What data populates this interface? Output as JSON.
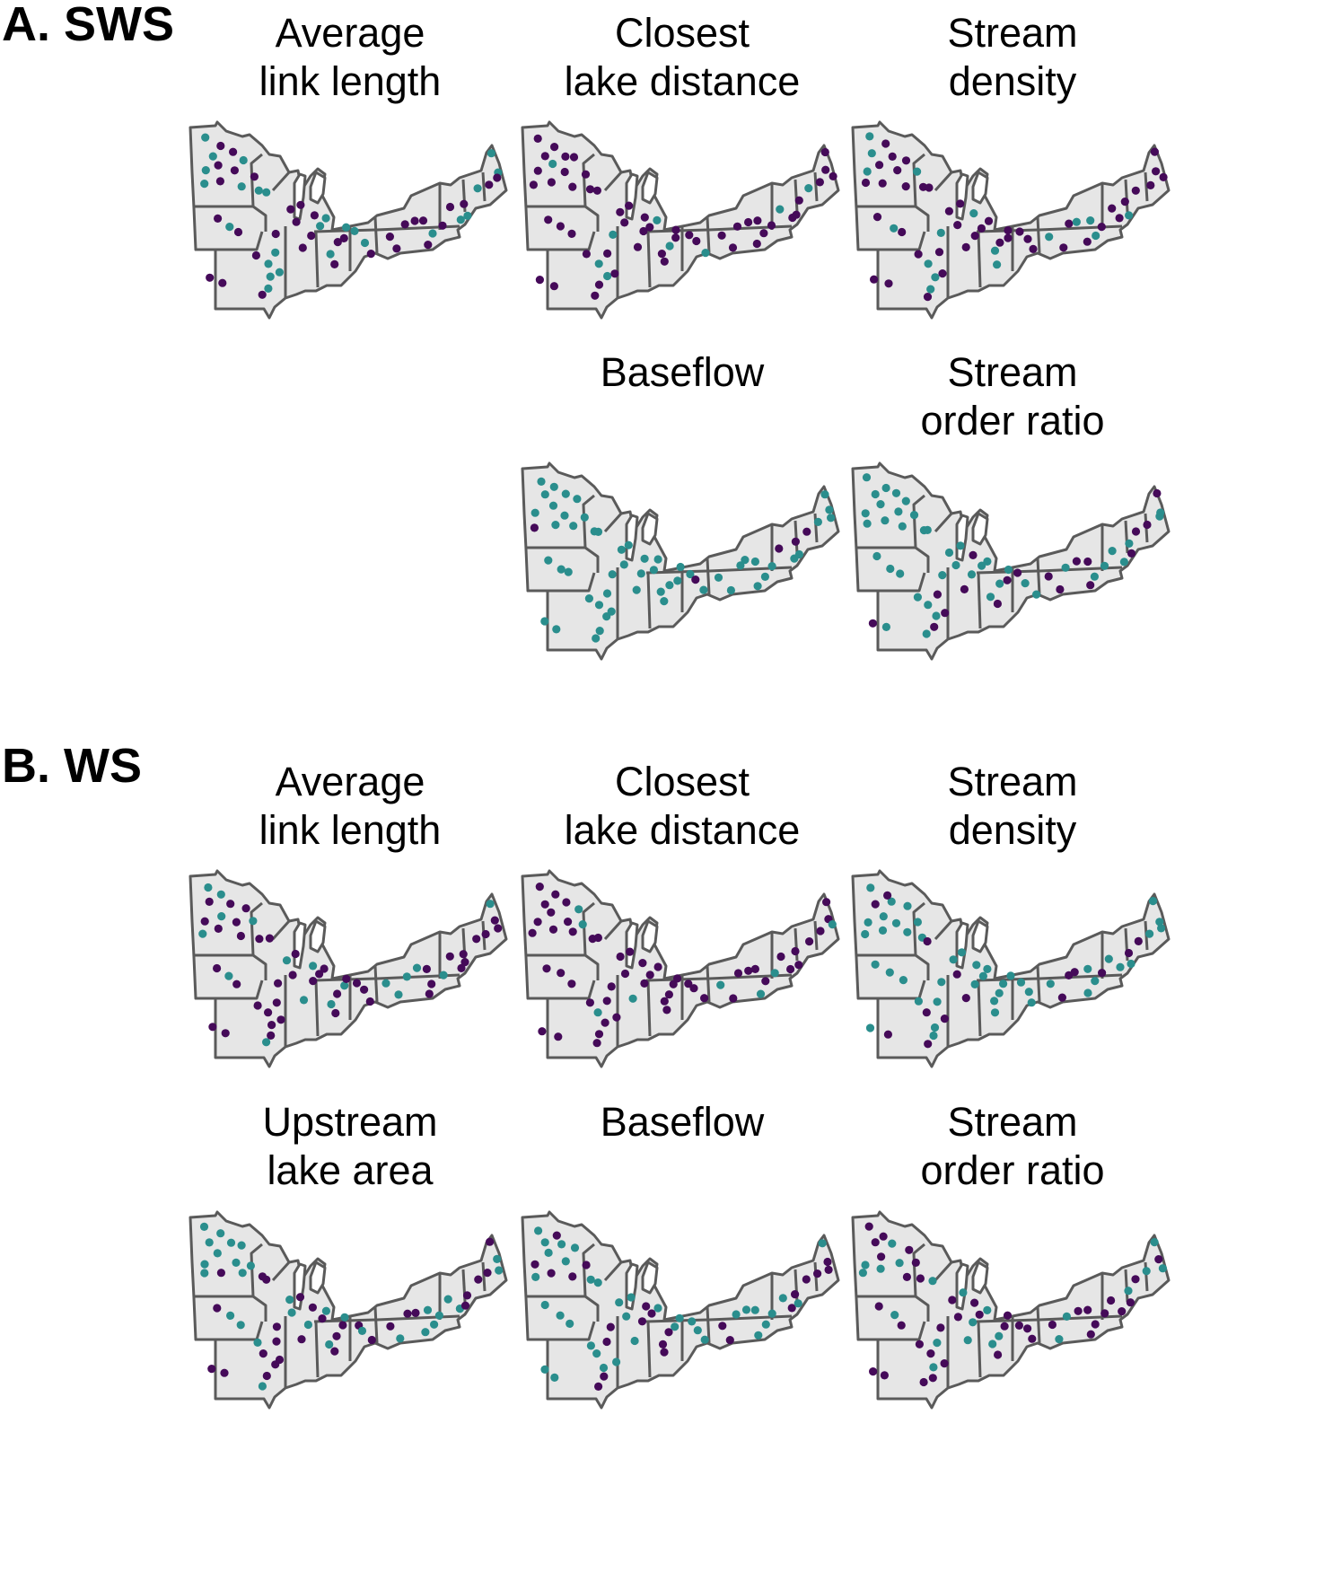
{
  "sections": [
    {
      "label": "A. SWS",
      "panels": [
        {
          "title": [
            "Average",
            "link length"
          ],
          "seed": 11,
          "teal_share": 0.3
        },
        {
          "title": [
            "Closest",
            "lake distance"
          ],
          "seed": 23,
          "teal_share": 0.12
        },
        {
          "title": [
            "Stream",
            "density"
          ],
          "seed": 37,
          "teal_share": 0.3
        },
        {
          "title": [
            "Baseflow",
            ""
          ],
          "seed": 41,
          "teal_share": 0.88
        },
        {
          "title": [
            "Stream",
            "order ratio"
          ],
          "seed": 53,
          "teal_share": 0.72
        }
      ]
    },
    {
      "label": "B. WS",
      "panels": [
        {
          "title": [
            "Average",
            "link length"
          ],
          "seed": 61,
          "teal_share": 0.35
        },
        {
          "title": [
            "Closest",
            "lake distance"
          ],
          "seed": 71,
          "teal_share": 0.1
        },
        {
          "title": [
            "Stream",
            "density"
          ],
          "seed": 83,
          "teal_share": 0.72
        },
        {
          "title": [
            "Upstream",
            "lake area"
          ],
          "seed": 97,
          "teal_share": 0.45
        },
        {
          "title": [
            "Baseflow",
            ""
          ],
          "seed": 101,
          "teal_share": 0.55
        },
        {
          "title": [
            "Stream",
            "order ratio"
          ],
          "seed": 113,
          "teal_share": 0.22
        }
      ]
    }
  ],
  "colors": {
    "teal": "#2a8e8d",
    "purple": "#450a59",
    "land_fill": "#e6e6e6",
    "border": "#5a5a5a"
  }
}
